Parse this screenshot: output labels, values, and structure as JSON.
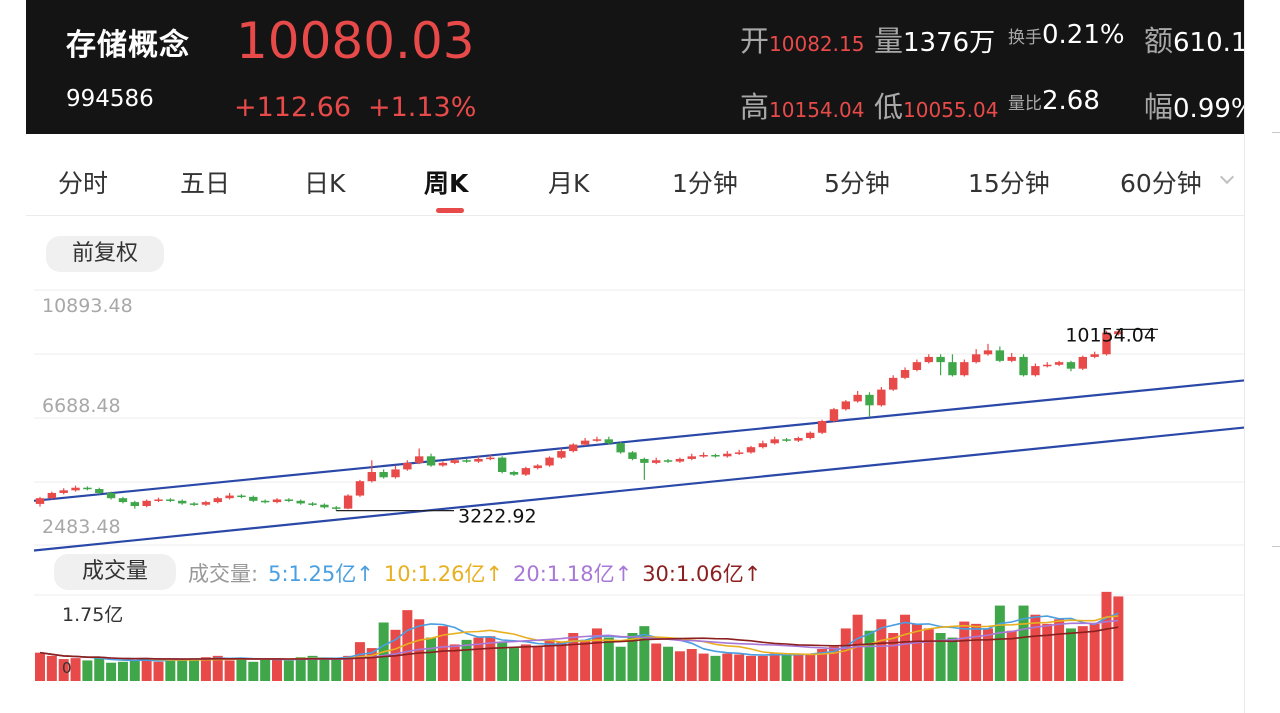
{
  "header": {
    "name": "存储概念",
    "code": "994586",
    "price": "10080.03",
    "change": "+112.66",
    "change_pct": "+1.13%",
    "stats": {
      "open_label": "开",
      "open_value": "10082.15",
      "volume_label": "量",
      "volume_value": "1376万",
      "turnover_label": "换手",
      "turnover_value": "0.21%",
      "amount_label": "额",
      "amount_value": "610.1",
      "high_label": "高",
      "high_value": "10154.04",
      "low_label": "低",
      "low_value": "10055.04",
      "ratio_label": "量比",
      "ratio_value": "2.68",
      "amp_label": "幅",
      "amp_value": "0.99%"
    }
  },
  "tabs": [
    "分时",
    "五日",
    "日K",
    "周K",
    "月K",
    "1分钟",
    "5分钟",
    "15分钟",
    "60分钟"
  ],
  "active_tab": "周K",
  "adjust_label": "前复权",
  "volume_pill": "成交量",
  "volume_legend": {
    "prefix": "成交量:",
    "ma5": "5:1.25亿↑",
    "ma10": "10:1.26亿↑",
    "ma20": "20:1.18亿↑",
    "ma30": "30:1.06亿↑"
  },
  "colors": {
    "up": "#e84a4a",
    "down": "#3fa64a",
    "channel": "#2a48a8",
    "ma5": "#4a9fe0",
    "ma10": "#e8b020",
    "ma20": "#a878d8",
    "ma30": "#8b2020"
  },
  "chart_data": {
    "type": "candlestick",
    "y_ticks": [
      "10893.48",
      "6688.48",
      "2483.48"
    ],
    "ylim": [
      2483.48,
      10893.48
    ],
    "max_label": "10154.04",
    "min_label": "3222.92",
    "channel_lines": [
      [
        [
          0,
          3600
        ],
        [
          101,
          8200
        ]
      ],
      [
        [
          0,
          1700
        ],
        [
          101,
          6400
        ]
      ]
    ],
    "candles": [
      [
        3480,
        3700,
        3380,
        3750
      ],
      [
        3700,
        3900,
        3650,
        3950
      ],
      [
        3900,
        4000,
        3850,
        4080
      ],
      [
        4000,
        4100,
        3950,
        4180
      ],
      [
        4100,
        4050,
        4000,
        4150
      ],
      [
        4050,
        3900,
        3850,
        4100
      ],
      [
        3900,
        3700,
        3650,
        3950
      ],
      [
        3700,
        3550,
        3500,
        3750
      ],
      [
        3550,
        3400,
        3300,
        3600
      ],
      [
        3400,
        3600,
        3350,
        3650
      ],
      [
        3600,
        3650,
        3550,
        3720
      ],
      [
        3650,
        3600,
        3550,
        3700
      ],
      [
        3600,
        3500,
        3450,
        3650
      ],
      [
        3500,
        3450,
        3400,
        3550
      ],
      [
        3450,
        3550,
        3400,
        3600
      ],
      [
        3550,
        3700,
        3500,
        3750
      ],
      [
        3700,
        3800,
        3650,
        3900
      ],
      [
        3800,
        3750,
        3700,
        3850
      ],
      [
        3750,
        3600,
        3550,
        3800
      ],
      [
        3600,
        3550,
        3500,
        3650
      ],
      [
        3550,
        3650,
        3500,
        3700
      ],
      [
        3650,
        3600,
        3550,
        3700
      ],
      [
        3600,
        3500,
        3450,
        3650
      ],
      [
        3500,
        3450,
        3400,
        3550
      ],
      [
        3450,
        3350,
        3300,
        3500
      ],
      [
        3350,
        3300,
        3222.92,
        3400
      ],
      [
        3300,
        3800,
        3280,
        3850
      ],
      [
        3800,
        4350,
        3750,
        4400
      ],
      [
        4350,
        4700,
        4300,
        5150
      ],
      [
        4700,
        4500,
        4450,
        4800
      ],
      [
        4500,
        4800,
        4450,
        4950
      ],
      [
        4800,
        5050,
        4750,
        5150
      ],
      [
        5050,
        5300,
        5000,
        5600
      ],
      [
        5300,
        4950,
        4900,
        5400
      ],
      [
        4950,
        5050,
        4900,
        5100
      ],
      [
        5050,
        5150,
        5000,
        5200
      ],
      [
        5150,
        5100,
        5050,
        5200
      ],
      [
        5100,
        5200,
        5050,
        5300
      ],
      [
        5200,
        5250,
        5150,
        5350
      ],
      [
        5250,
        4700,
        4650,
        5300
      ],
      [
        4700,
        4600,
        4550,
        4750
      ],
      [
        4600,
        4850,
        4550,
        4900
      ],
      [
        4850,
        4950,
        4800,
        5000
      ],
      [
        4950,
        5250,
        4900,
        5300
      ],
      [
        5250,
        5500,
        5200,
        5600
      ],
      [
        5500,
        5750,
        5450,
        5800
      ],
      [
        5750,
        5900,
        5700,
        6000
      ],
      [
        5900,
        5950,
        5850,
        6050
      ],
      [
        5950,
        5800,
        5750,
        6050
      ],
      [
        5800,
        5450,
        5400,
        5850
      ],
      [
        5450,
        5200,
        5150,
        5500
      ],
      [
        5200,
        5050,
        4400,
        5250
      ],
      [
        5050,
        5150,
        5000,
        5250
      ],
      [
        5150,
        5100,
        5050,
        5200
      ],
      [
        5100,
        5200,
        5050,
        5250
      ],
      [
        5200,
        5300,
        5150,
        5400
      ],
      [
        5300,
        5350,
        5250,
        5450
      ],
      [
        5350,
        5300,
        5250,
        5400
      ],
      [
        5300,
        5400,
        5250,
        5500
      ],
      [
        5400,
        5450,
        5350,
        5550
      ],
      [
        5450,
        5650,
        5400,
        5700
      ],
      [
        5650,
        5800,
        5600,
        5900
      ],
      [
        5800,
        5950,
        5750,
        6050
      ],
      [
        5950,
        5900,
        5850,
        6000
      ],
      [
        5900,
        6000,
        5850,
        6050
      ],
      [
        6000,
        6200,
        5950,
        6250
      ],
      [
        6200,
        6650,
        6150,
        6700
      ],
      [
        6650,
        7100,
        6600,
        7150
      ],
      [
        7100,
        7400,
        7050,
        7450
      ],
      [
        7400,
        7650,
        7350,
        7800
      ],
      [
        7650,
        7250,
        6800,
        7750
      ],
      [
        7250,
        7850,
        7200,
        7950
      ],
      [
        7850,
        8300,
        7800,
        8400
      ],
      [
        8300,
        8600,
        8250,
        8700
      ],
      [
        8600,
        8900,
        8550,
        9000
      ],
      [
        8900,
        9100,
        8850,
        9200
      ],
      [
        9100,
        8900,
        8400,
        9200
      ],
      [
        8900,
        8400,
        8350,
        9200
      ],
      [
        8400,
        8900,
        8350,
        9000
      ],
      [
        8900,
        9200,
        8850,
        9400
      ],
      [
        9200,
        9350,
        9150,
        9600
      ],
      [
        9350,
        8950,
        8900,
        9500
      ],
      [
        8950,
        9100,
        8900,
        9250
      ],
      [
        9100,
        8400,
        8350,
        9200
      ],
      [
        8400,
        8750,
        8350,
        8850
      ],
      [
        8750,
        8800,
        8700,
        8900
      ],
      [
        8800,
        8900,
        8750,
        8950
      ],
      [
        8900,
        8650,
        8550,
        8950
      ],
      [
        8650,
        9100,
        8600,
        9150
      ],
      [
        9100,
        9200,
        9050,
        9300
      ],
      [
        9200,
        10030,
        9150,
        10100
      ],
      [
        9967,
        10080,
        9920,
        10154.04
      ]
    ],
    "volumes": [
      0.62,
      0.55,
      0.48,
      0.5,
      0.45,
      0.52,
      0.4,
      0.42,
      0.45,
      0.5,
      0.42,
      0.48,
      0.45,
      0.5,
      0.52,
      0.55,
      0.45,
      0.5,
      0.42,
      0.48,
      0.5,
      0.45,
      0.52,
      0.55,
      0.48,
      0.48,
      0.55,
      0.85,
      0.72,
      1.28,
      1.12,
      1.55,
      1.35,
      0.95,
      1.2,
      0.8,
      0.9,
      0.95,
      0.98,
      0.85,
      0.72,
      0.8,
      0.75,
      0.9,
      0.85,
      1.05,
      0.9,
      1.15,
      0.95,
      0.75,
      1.05,
      1.2,
      0.82,
      0.75,
      0.65,
      0.7,
      0.6,
      0.55,
      0.6,
      0.58,
      0.55,
      0.55,
      0.6,
      0.6,
      0.58,
      0.6,
      0.7,
      0.75,
      1.15,
      1.45,
      1.1,
      1.35,
      1.05,
      1.45,
      1.25,
      1.15,
      1.05,
      0.95,
      1.3,
      1.25,
      1.15,
      1.65,
      1.1,
      1.65,
      1.45,
      1.25,
      1.35,
      1.15,
      1.2,
      1.25,
      1.95,
      1.85
    ],
    "vol_ylim": [
      0,
      1.75
    ],
    "vol_tick_labels": [
      "1.75亿",
      "0"
    ]
  }
}
